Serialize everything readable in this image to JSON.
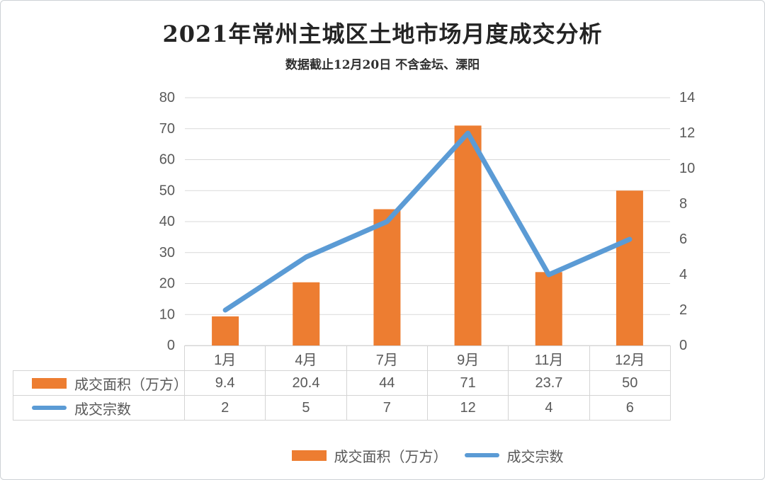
{
  "title": "2021年常州主城区土地市场月度成交分析",
  "subtitle": "数据截止12月20日 不含金坛、溧阳",
  "colors": {
    "bar_orange": "#ED7D31",
    "line_blue": "#5B9BD5",
    "gridline": "#D9D9D9",
    "axis_text": "#595959",
    "table_border": "#D4D4D4",
    "title_text": "#242424"
  },
  "chart_data": {
    "type": "combo",
    "title": "2021年常州主城区土地市场月度成交分析",
    "subtitle": "数据截止12月20日 不含金坛、溧阳",
    "categories": [
      "1月",
      "4月",
      "7月",
      "9月",
      "11月",
      "12月"
    ],
    "series": [
      {
        "name": "成交面积（万方）",
        "type": "bar",
        "axis": "left",
        "color": "#ED7D31",
        "values": [
          9.4,
          20.4,
          44,
          71,
          23.7,
          50
        ]
      },
      {
        "name": "成交宗数",
        "type": "line",
        "axis": "right",
        "color": "#5B9BD5",
        "values": [
          2,
          5,
          7,
          12,
          4,
          6
        ]
      }
    ],
    "left_axis": {
      "min": 0,
      "max": 80,
      "step": 10,
      "ticks": [
        0,
        10,
        20,
        30,
        40,
        50,
        60,
        70,
        80
      ]
    },
    "right_axis": {
      "min": 0,
      "max": 14,
      "step": 2,
      "ticks": [
        0,
        2,
        4,
        6,
        8,
        10,
        12,
        14
      ]
    },
    "grid": "horizontal",
    "legend_position": "bottom",
    "data_table_shown": true
  }
}
